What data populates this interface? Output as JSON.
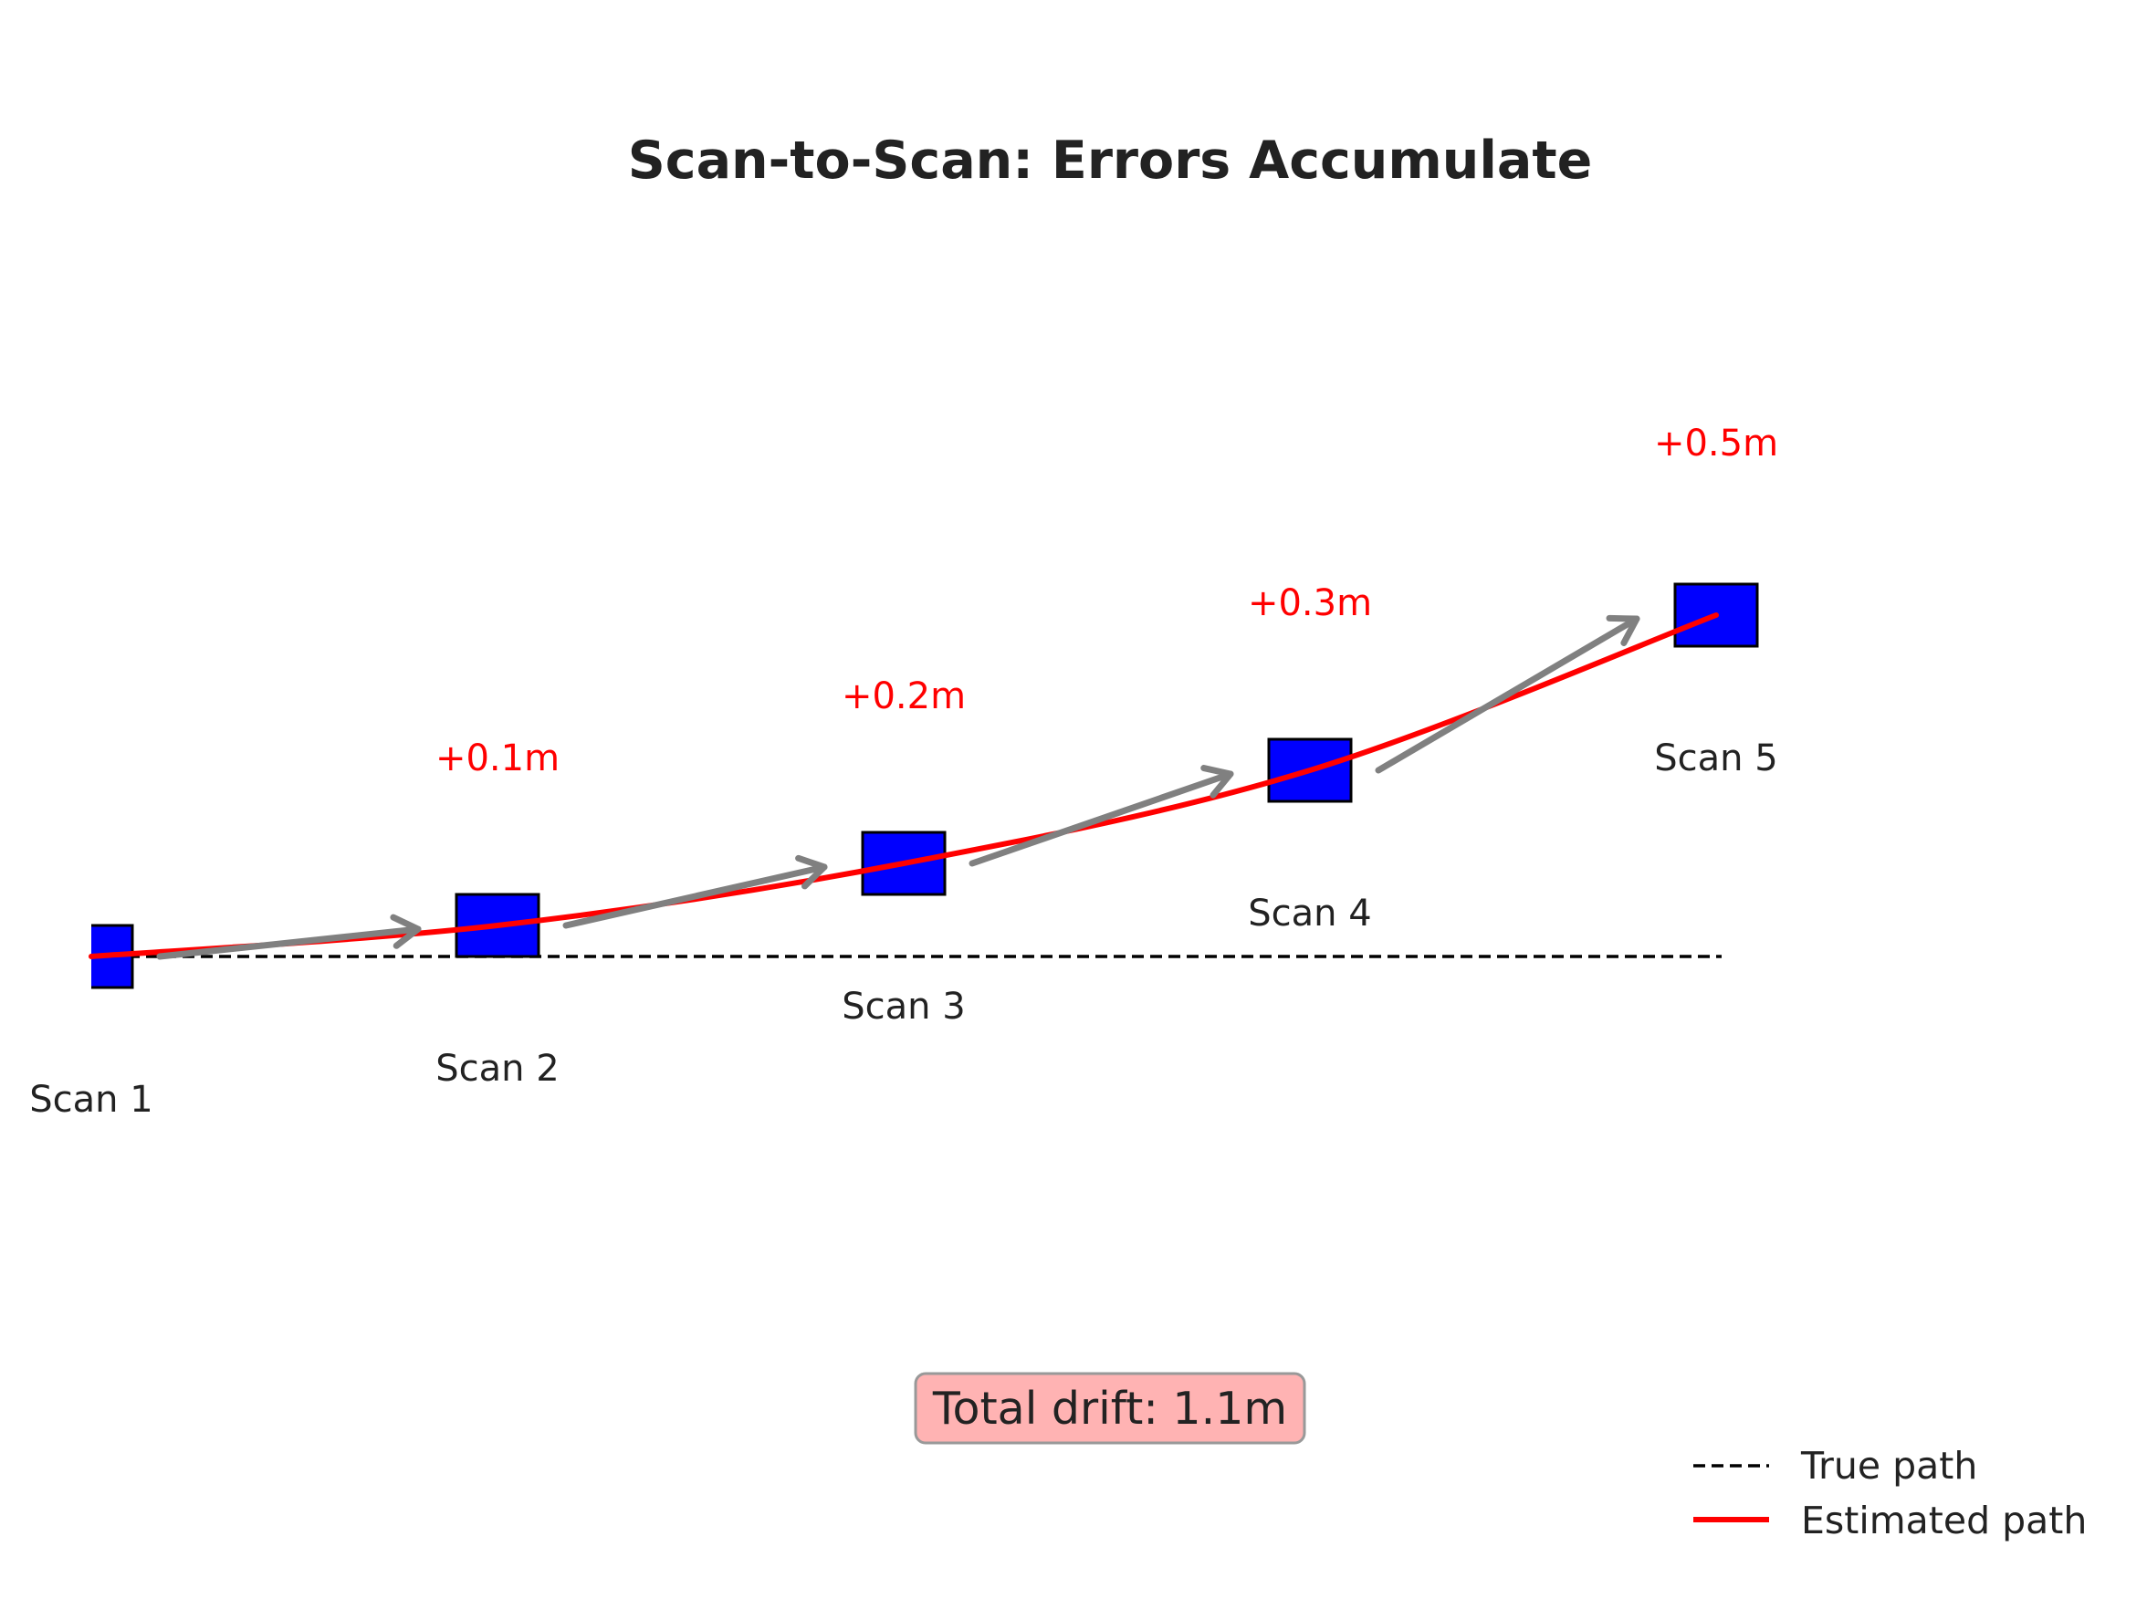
{
  "title": "Scan-to-Scan: Errors Accumulate",
  "scans": [
    {
      "label": "Scan 1",
      "error": "",
      "estimated_offset_m": 0.0
    },
    {
      "label": "Scan 2",
      "error": "+0.1m",
      "estimated_offset_m": 0.1
    },
    {
      "label": "Scan 3",
      "error": "+0.2m",
      "estimated_offset_m": 0.3
    },
    {
      "label": "Scan 4",
      "error": "+0.3m",
      "estimated_offset_m": 0.6
    },
    {
      "label": "Scan 5",
      "error": "+0.5m",
      "estimated_offset_m": 1.1
    }
  ],
  "drift_box": {
    "text": "Total drift: 1.1m",
    "bg_color": "#ffb3b3",
    "border_color": "#999999"
  },
  "legend": {
    "items": [
      {
        "label": "True path",
        "style": "dashed",
        "color": "#000000"
      },
      {
        "label": "Estimated path",
        "style": "solid",
        "color": "#ff0000"
      }
    ]
  },
  "colors": {
    "scan_box": "#0000ff",
    "estimated_path": "#ff0000",
    "true_path": "#000000",
    "arrow": "#808080",
    "error_text": "#ff0000"
  }
}
